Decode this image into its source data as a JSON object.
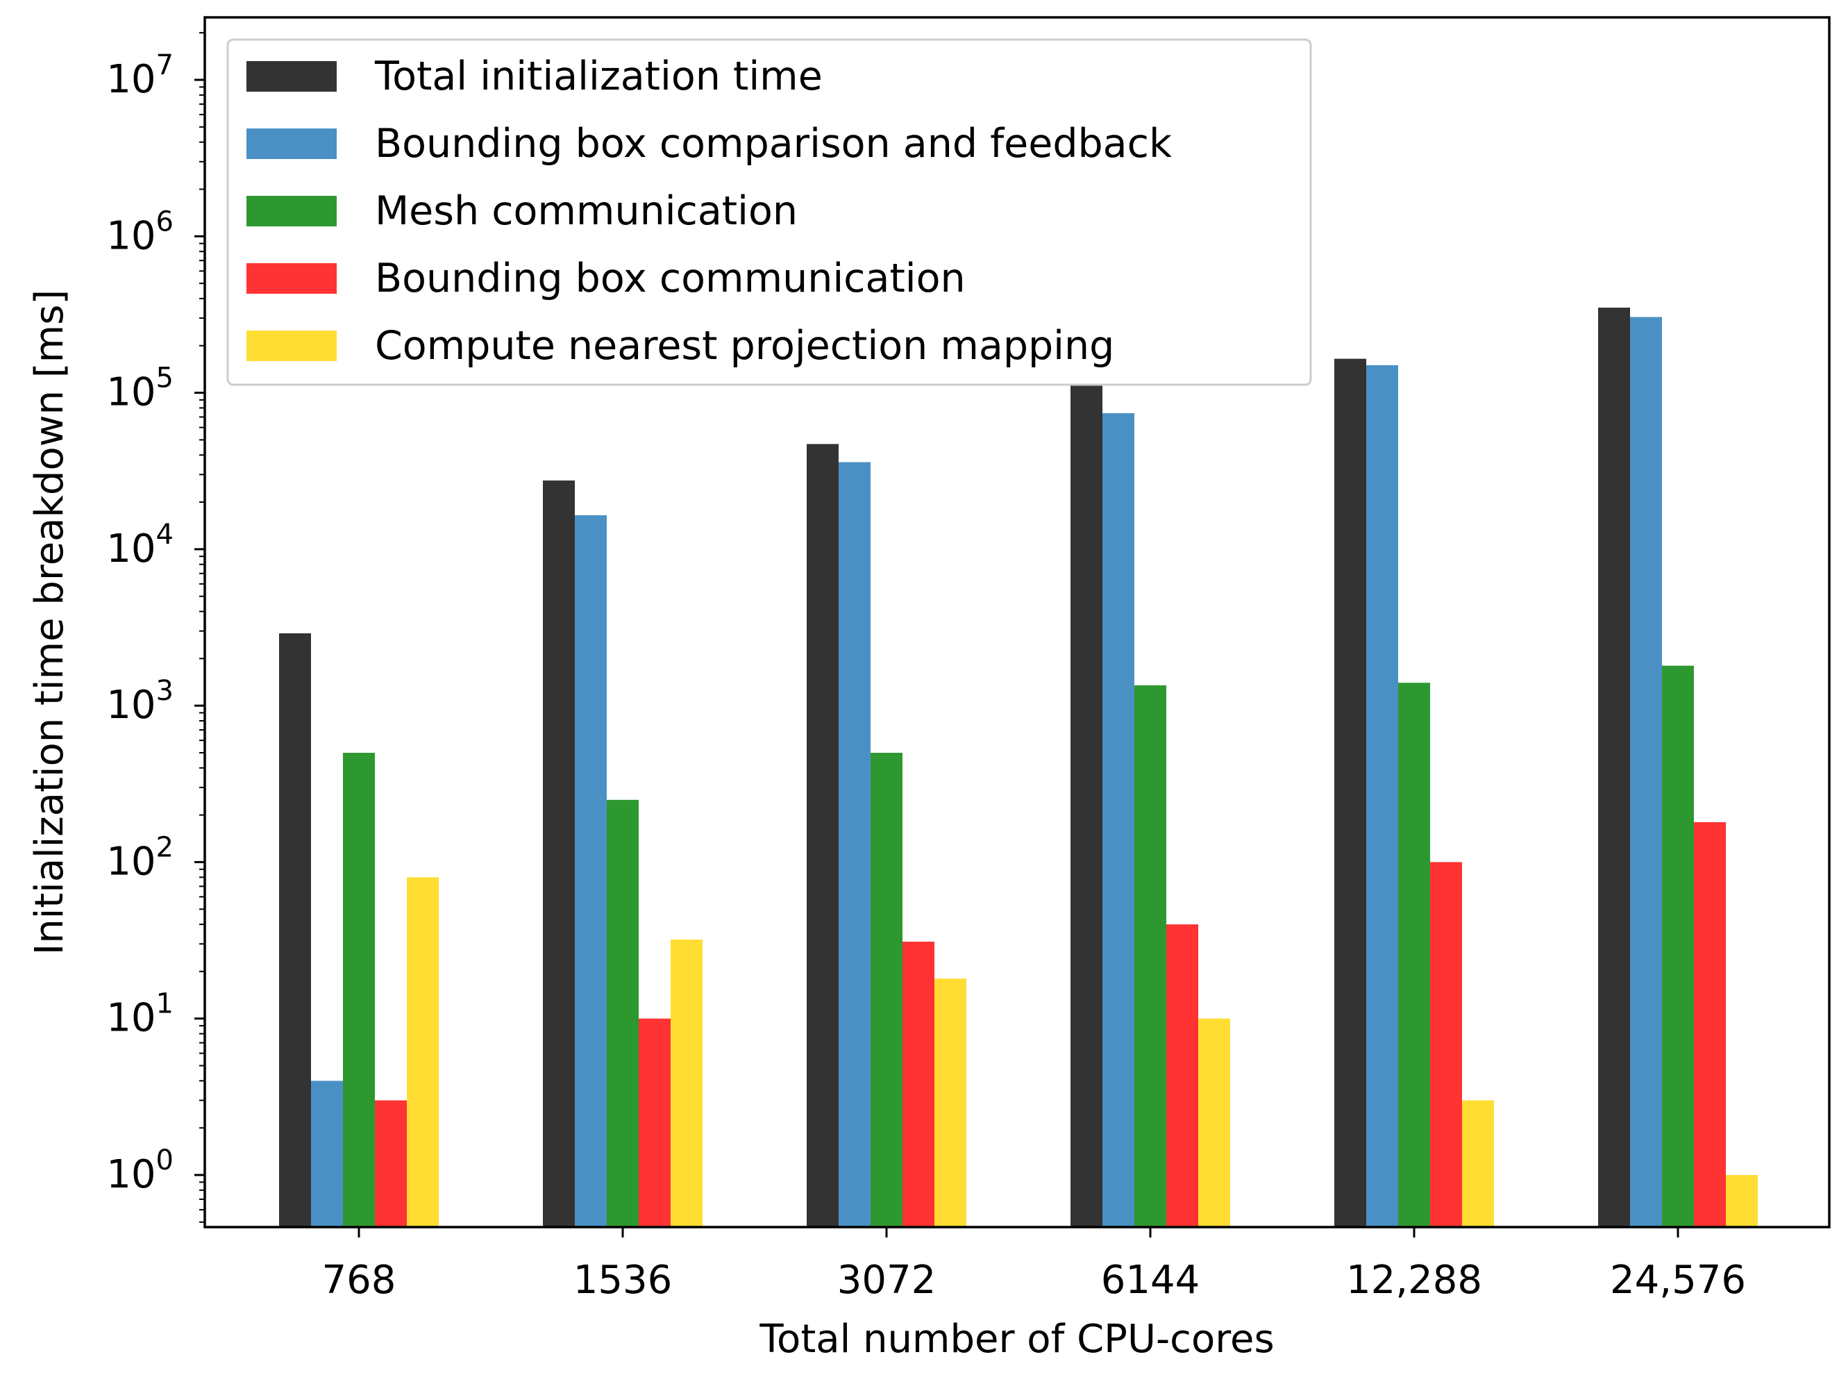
{
  "chart_data": {
    "type": "bar",
    "scale": "log",
    "xlabel": "Total number of CPU-cores",
    "ylabel": "Initialization time breakdown [ms]",
    "categories": [
      "768",
      "1536",
      "3072",
      "6144",
      "12,288",
      "24,576"
    ],
    "ylim": [
      0.5,
      20000000
    ],
    "yticks": [
      {
        "value": 1,
        "base": "10",
        "exp": "0"
      },
      {
        "value": 10,
        "base": "10",
        "exp": "1"
      },
      {
        "value": 100,
        "base": "10",
        "exp": "2"
      },
      {
        "value": 1000,
        "base": "10",
        "exp": "3"
      },
      {
        "value": 10000,
        "base": "10",
        "exp": "4"
      },
      {
        "value": 100000,
        "base": "10",
        "exp": "5"
      },
      {
        "value": 1000000,
        "base": "10",
        "exp": "6"
      },
      {
        "value": 10000000,
        "base": "10",
        "exp": "7"
      }
    ],
    "legend_position": "top-left",
    "series": [
      {
        "name": "Total initialization time",
        "color": "#333333",
        "values": [
          2900,
          27500,
          47000,
          112000,
          165000,
          350000
        ]
      },
      {
        "name": "Bounding box comparison and feedback",
        "color": "#4a90c4",
        "values": [
          4,
          16500,
          36000,
          74000,
          150000,
          305000
        ]
      },
      {
        "name": "Mesh communication",
        "color": "#2e9830",
        "values": [
          500,
          250,
          500,
          1350,
          1400,
          1800
        ]
      },
      {
        "name": "Bounding box communication",
        "color": "#ff3333",
        "values": [
          3,
          10,
          31,
          40,
          100,
          180
        ]
      },
      {
        "name": "Compute nearest projection mapping",
        "color": "#ffdd33",
        "values": [
          80,
          32,
          18,
          10,
          3,
          1
        ]
      }
    ]
  }
}
